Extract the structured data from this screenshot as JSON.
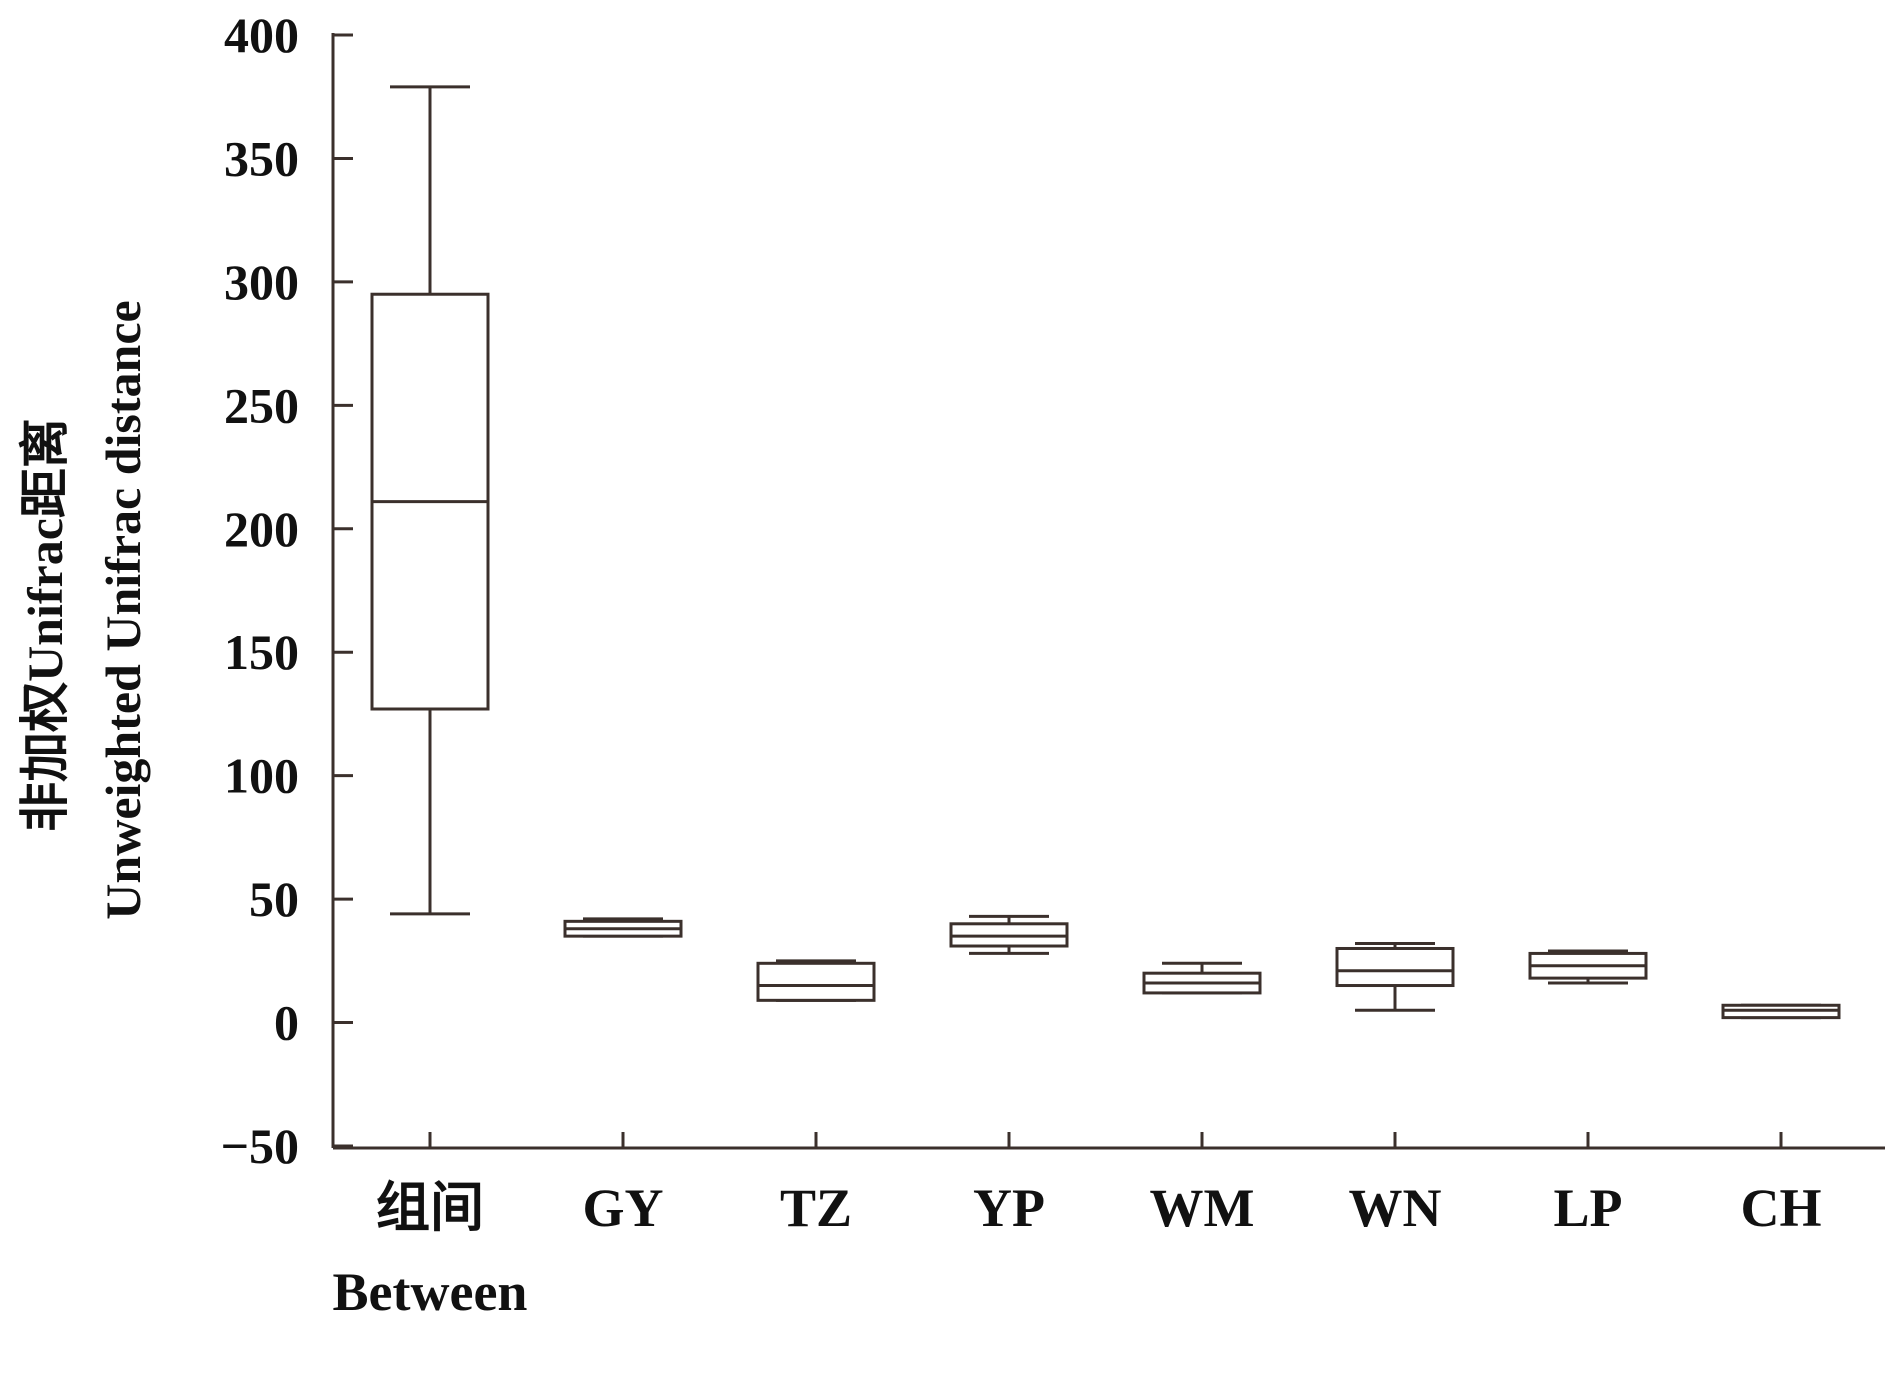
{
  "chart_data": {
    "type": "box",
    "ylabel": [
      "非加权Unifrac距离",
      "Unweighted Unifrac distance"
    ],
    "ylim": [
      -50,
      400
    ],
    "yticks": [
      "400",
      "350",
      "300",
      "250",
      "200",
      "150",
      "100",
      "50",
      "0",
      "−50"
    ],
    "ytick_values": [
      400,
      350,
      300,
      250,
      200,
      150,
      100,
      50,
      0,
      -50
    ],
    "categories": [
      {
        "label": "组间",
        "sublabel": "Between"
      },
      {
        "label": "GY",
        "sublabel": ""
      },
      {
        "label": "TZ",
        "sublabel": ""
      },
      {
        "label": "YP",
        "sublabel": ""
      },
      {
        "label": "WM",
        "sublabel": ""
      },
      {
        "label": "WN",
        "sublabel": ""
      },
      {
        "label": "LP",
        "sublabel": ""
      },
      {
        "label": "CH",
        "sublabel": ""
      }
    ],
    "boxes": [
      {
        "min": 44,
        "q1": 127,
        "median": 211,
        "q3": 295,
        "max": 379
      },
      {
        "min": 35,
        "q1": 35,
        "median": 38,
        "q3": 41,
        "max": 42
      },
      {
        "min": 9,
        "q1": 9,
        "median": 15,
        "q3": 24,
        "max": 25
      },
      {
        "min": 28,
        "q1": 31,
        "median": 35,
        "q3": 40,
        "max": 43
      },
      {
        "min": 12,
        "q1": 12,
        "median": 16,
        "q3": 20,
        "max": 24
      },
      {
        "min": 5,
        "q1": 15,
        "median": 21,
        "q3": 30,
        "max": 32
      },
      {
        "min": 16,
        "q1": 18,
        "median": 23,
        "q3": 28,
        "max": 29
      },
      {
        "min": 2,
        "q1": 2,
        "median": 5,
        "q3": 7,
        "max": 7
      }
    ]
  }
}
